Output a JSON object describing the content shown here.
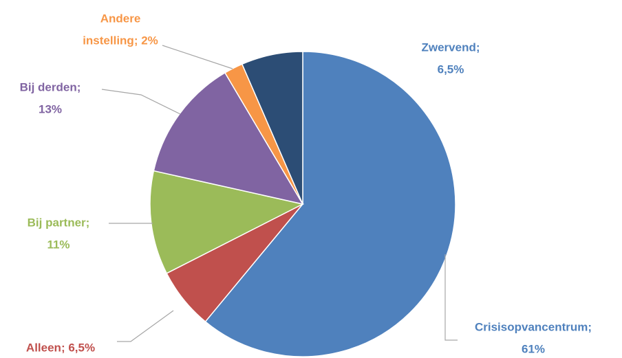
{
  "chart_data": {
    "type": "pie",
    "labels": [
      [
        "Crisisopvancentrum;",
        "61%"
      ],
      [
        "Alleen; 6,5%"
      ],
      [
        "Bij partner;",
        "11%"
      ],
      [
        "Bij derden;",
        "13%"
      ],
      [
        "Andere",
        "instelling; 2%"
      ],
      [
        "Zwervend;",
        "6,5%"
      ]
    ],
    "values": [
      61,
      6.5,
      11,
      13,
      2,
      6.5
    ],
    "colors": [
      "#4f81bd",
      "#c0504d",
      "#9bbb59",
      "#8064a2",
      "#f79646",
      "#2c4d75"
    ],
    "label_colors": [
      "#4f81bd",
      "#c0504d",
      "#9bbb59",
      "#8064a2",
      "#f79646",
      "#4f81bd"
    ]
  }
}
